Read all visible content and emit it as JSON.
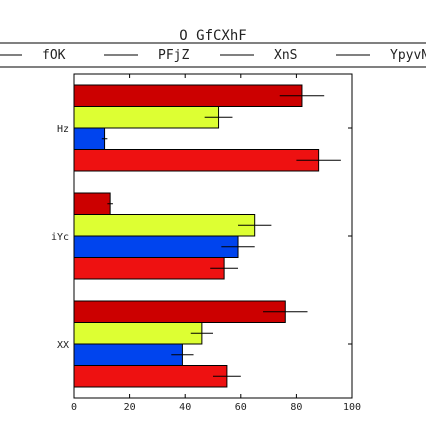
{
  "chart_data": {
    "type": "bar",
    "orientation": "horizontal",
    "title": "O GfCXhF",
    "categories": [
      "Hz",
      "iYc",
      "XX"
    ],
    "xlim": [
      0,
      100
    ],
    "xticks": [
      0,
      20,
      40,
      60,
      80,
      100
    ],
    "legend_placement": "top",
    "grid": false,
    "series": [
      {
        "name": "fOK",
        "color": "#ee1111",
        "values": [
          88,
          54,
          55
        ],
        "errors": [
          8,
          5,
          5
        ]
      },
      {
        "name": "PFjZ",
        "color": "#0044ee",
        "values": [
          11,
          59,
          39
        ],
        "errors": [
          1,
          6,
          4
        ]
      },
      {
        "name": "XnS",
        "color": "#ddff33",
        "values": [
          52,
          65,
          46
        ],
        "errors": [
          5,
          6,
          4
        ]
      },
      {
        "name": "YpyvN",
        "color": "#cc0000",
        "values": [
          82,
          13,
          76
        ],
        "errors": [
          8,
          1,
          8
        ]
      }
    ]
  }
}
